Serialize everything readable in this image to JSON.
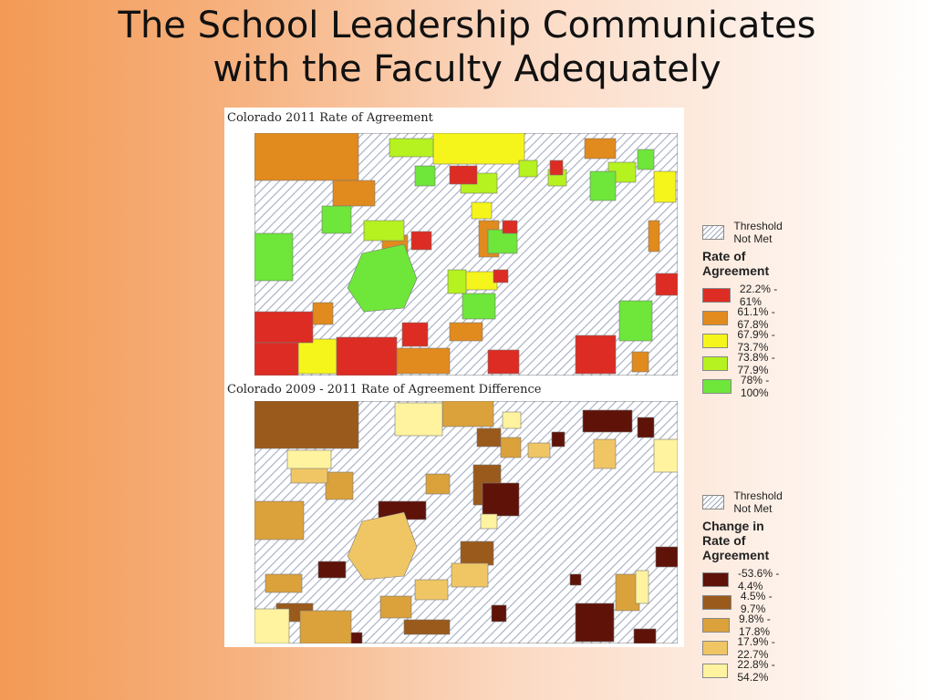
{
  "slide": {
    "title_line1": "The School Leadership Communicates",
    "title_line2": "with the Faculty Adequately"
  },
  "map_2011": {
    "title": "Colorado 2011 Rate of Agreement",
    "legend": {
      "threshold_label": "Threshold Not Met",
      "heading": "Rate of Agreement",
      "classes": [
        {
          "label": "22.2% - 61%",
          "color": "#dd2c23"
        },
        {
          "label": "61.1% - 67.8%",
          "color": "#e18a1e"
        },
        {
          "label": "67.9% - 73.7%",
          "color": "#f5f51c"
        },
        {
          "label": "73.8% - 77.9%",
          "color": "#b5f21f"
        },
        {
          "label": "78% - 100%",
          "color": "#6ee63a"
        }
      ]
    }
  },
  "map_diff": {
    "title": "Colorado 2009 - 2011 Rate of Agreement Difference",
    "legend": {
      "threshold_label": "Threshold Not Met",
      "heading": "Change in Rate of Agreement",
      "classes": [
        {
          "label": "-53.6% - 4.4%",
          "color": "#5e1208"
        },
        {
          "label": "4.5% - 9.7%",
          "color": "#9a5a1c"
        },
        {
          "label": "9.8% - 17.8%",
          "color": "#dba23c"
        },
        {
          "label": "17.9% - 22.7%",
          "color": "#f0c665"
        },
        {
          "label": "22.8% - 54.2%",
          "color": "#fff3a0"
        }
      ]
    }
  }
}
